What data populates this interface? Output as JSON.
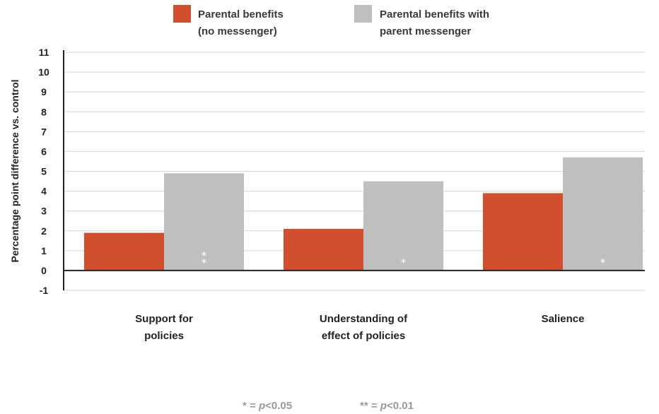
{
  "chart_data": {
    "type": "bar",
    "title": "",
    "xlabel": "",
    "ylabel": "Percentage point difference vs. control",
    "ylim": [
      -1,
      11
    ],
    "yticks": [
      -1,
      0,
      1,
      2,
      3,
      4,
      5,
      6,
      7,
      8,
      9,
      10,
      11
    ],
    "grid": true,
    "legend_position": "top-center",
    "categories": [
      [
        "Support for",
        "policies"
      ],
      [
        "Understanding of",
        "effect of policies"
      ],
      [
        "Salience"
      ]
    ],
    "series": [
      {
        "name_lines": [
          "Parental benefits",
          "(no messenger)"
        ],
        "color": "#d24f2d",
        "values": [
          1.9,
          2.1,
          3.9
        ],
        "sig": [
          "",
          "",
          ""
        ]
      },
      {
        "name_lines": [
          "Parental benefits with",
          "parent messenger"
        ],
        "color": "#c0bfbf",
        "values": [
          4.9,
          4.5,
          5.7
        ],
        "sig": [
          "**",
          "*",
          "*"
        ]
      }
    ],
    "footnote": {
      "single_star": "*",
      "single_eq": " = ",
      "single_p": "p",
      "single_val": "<0.05",
      "double_star": "**",
      "double_eq": " = ",
      "double_p": "p",
      "double_val": "<0.01"
    }
  }
}
